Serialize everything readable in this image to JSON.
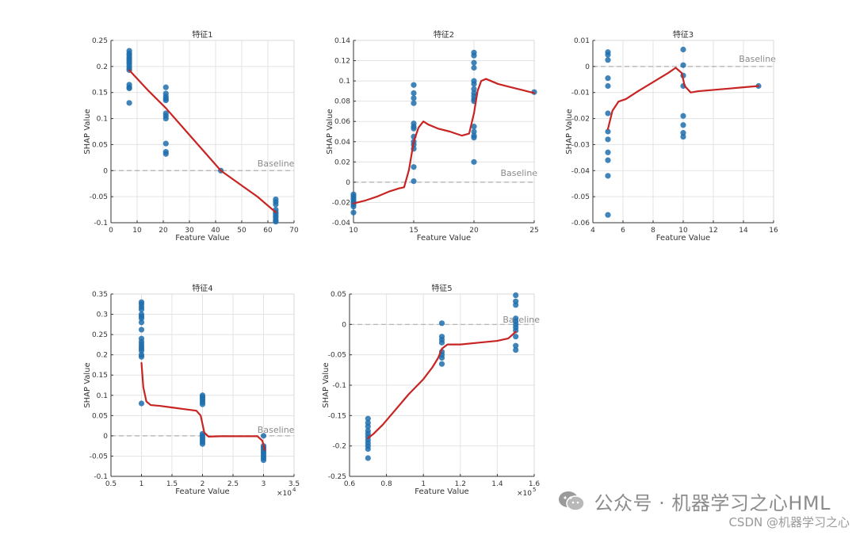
{
  "chart_data": [
    {
      "type": "scatter",
      "title": "特征1",
      "xlabel": "Feature Value",
      "ylabel": "SHAP Value",
      "xlim": [
        0,
        70
      ],
      "ylim": [
        -0.1,
        0.25
      ],
      "x_ticks": [
        0,
        10,
        20,
        30,
        40,
        50,
        60,
        70
      ],
      "y_ticks": [
        -0.1,
        -0.05,
        0,
        0.05,
        0.1,
        0.15,
        0.2,
        0.25
      ],
      "x_tick_labels": [
        "0",
        "10",
        "20",
        "30",
        "40",
        "50",
        "60",
        "70"
      ],
      "y_tick_labels": [
        "-0.1",
        "-0.05",
        "0",
        "0.05",
        "0.1",
        "0.15",
        "0.2",
        "0.25"
      ],
      "baseline_label": "Baseline",
      "baseline_label_pos": [
        56,
        0.008
      ],
      "grid": true,
      "points": [
        [
          7,
          0.23
        ],
        [
          7,
          0.225
        ],
        [
          7,
          0.222
        ],
        [
          7,
          0.218
        ],
        [
          7,
          0.215
        ],
        [
          7,
          0.212
        ],
        [
          7,
          0.208
        ],
        [
          7,
          0.205
        ],
        [
          7,
          0.2
        ],
        [
          7,
          0.196
        ],
        [
          7,
          0.193
        ],
        [
          7,
          0.165
        ],
        [
          7,
          0.16
        ],
        [
          7,
          0.158
        ],
        [
          7,
          0.13
        ],
        [
          21,
          0.16
        ],
        [
          21,
          0.148
        ],
        [
          21,
          0.142
        ],
        [
          21,
          0.138
        ],
        [
          21,
          0.135
        ],
        [
          21,
          0.11
        ],
        [
          21,
          0.105
        ],
        [
          21,
          0.1
        ],
        [
          21,
          0.052
        ],
        [
          21,
          0.036
        ],
        [
          21,
          0.032
        ],
        [
          42,
          0.0
        ],
        [
          63,
          -0.055
        ],
        [
          63,
          -0.06
        ],
        [
          63,
          -0.065
        ],
        [
          63,
          -0.075
        ],
        [
          63,
          -0.08
        ],
        [
          63,
          -0.083
        ],
        [
          63,
          -0.087
        ],
        [
          63,
          -0.09
        ],
        [
          63,
          -0.095
        ],
        [
          63,
          -0.098
        ]
      ],
      "fit_line": [
        [
          7,
          0.193
        ],
        [
          14,
          0.155
        ],
        [
          21,
          0.12
        ],
        [
          28,
          0.08
        ],
        [
          35,
          0.04
        ],
        [
          42,
          0.0
        ],
        [
          49,
          -0.025
        ],
        [
          56,
          -0.05
        ],
        [
          63,
          -0.08
        ]
      ]
    },
    {
      "type": "scatter",
      "title": "特征2",
      "xlabel": "Feature Value",
      "ylabel": "SHAP Value",
      "xlim": [
        10,
        25
      ],
      "ylim": [
        -0.04,
        0.14
      ],
      "x_ticks": [
        10,
        15,
        20,
        25
      ],
      "y_ticks": [
        -0.04,
        -0.02,
        0,
        0.02,
        0.04,
        0.06,
        0.08,
        0.1,
        0.12,
        0.14
      ],
      "x_tick_labels": [
        "10",
        "15",
        "20",
        "25"
      ],
      "y_tick_labels": [
        "-0.04",
        "-0.02",
        "0",
        "0.02",
        "0.04",
        "0.06",
        "0.08",
        "0.1",
        "0.12",
        "0.14"
      ],
      "baseline_label": "Baseline",
      "baseline_label_pos": [
        22.2,
        0.006
      ],
      "grid": true,
      "points": [
        [
          10,
          -0.012
        ],
        [
          10,
          -0.014
        ],
        [
          10,
          -0.016
        ],
        [
          10,
          -0.018
        ],
        [
          10,
          -0.02
        ],
        [
          10,
          -0.022
        ],
        [
          10,
          -0.024
        ],
        [
          10,
          -0.03
        ],
        [
          15,
          0.096
        ],
        [
          15,
          0.088
        ],
        [
          15,
          0.083
        ],
        [
          15,
          0.078
        ],
        [
          15,
          0.058
        ],
        [
          15,
          0.055
        ],
        [
          15,
          0.053
        ],
        [
          15,
          0.045
        ],
        [
          15,
          0.04
        ],
        [
          15,
          0.037
        ],
        [
          15,
          0.033
        ],
        [
          15,
          0.015
        ],
        [
          15,
          0.001
        ],
        [
          20,
          0.128
        ],
        [
          20,
          0.125
        ],
        [
          20,
          0.118
        ],
        [
          20,
          0.113
        ],
        [
          20,
          0.1
        ],
        [
          20,
          0.097
        ],
        [
          20,
          0.092
        ],
        [
          20,
          0.088
        ],
        [
          20,
          0.085
        ],
        [
          20,
          0.082
        ],
        [
          20,
          0.08
        ],
        [
          20,
          0.055
        ],
        [
          20,
          0.05
        ],
        [
          20,
          0.046
        ],
        [
          20,
          0.044
        ],
        [
          20,
          0.02
        ],
        [
          25,
          0.089
        ]
      ],
      "fit_line": [
        [
          10,
          -0.021
        ],
        [
          11,
          -0.018
        ],
        [
          12,
          -0.014
        ],
        [
          13,
          -0.009
        ],
        [
          13.8,
          -0.006
        ],
        [
          14.2,
          -0.005
        ],
        [
          14.6,
          0.012
        ],
        [
          15,
          0.04
        ],
        [
          15.4,
          0.054
        ],
        [
          15.8,
          0.06
        ],
        [
          16.2,
          0.057
        ],
        [
          17,
          0.053
        ],
        [
          18,
          0.05
        ],
        [
          19,
          0.046
        ],
        [
          19.6,
          0.048
        ],
        [
          20,
          0.068
        ],
        [
          20.3,
          0.09
        ],
        [
          20.6,
          0.1
        ],
        [
          21,
          0.102
        ],
        [
          22,
          0.097
        ],
        [
          23,
          0.094
        ],
        [
          24,
          0.091
        ],
        [
          25,
          0.088
        ]
      ]
    },
    {
      "type": "scatter",
      "title": "特征3",
      "xlabel": "Feature Value",
      "ylabel": "SHAP Value",
      "xlim": [
        4,
        16
      ],
      "ylim": [
        -0.06,
        0.01
      ],
      "x_ticks": [
        4,
        6,
        8,
        10,
        12,
        14,
        16
      ],
      "y_ticks": [
        -0.06,
        -0.05,
        -0.04,
        -0.03,
        -0.02,
        -0.01,
        0,
        0.01
      ],
      "x_tick_labels": [
        "4",
        "6",
        "8",
        "10",
        "12",
        "14",
        "16"
      ],
      "y_tick_labels": [
        "-0.06",
        "-0.05",
        "-0.04",
        "-0.03",
        "-0.02",
        "-0.01",
        "0",
        "0.01"
      ],
      "baseline_label": "Baseline",
      "baseline_label_pos": [
        13.7,
        0.0018
      ],
      "grid": true,
      "points": [
        [
          5,
          0.0055
        ],
        [
          5,
          0.0045
        ],
        [
          5,
          0.0025
        ],
        [
          5,
          -0.0045
        ],
        [
          5,
          -0.0075
        ],
        [
          5,
          -0.018
        ],
        [
          5,
          -0.025
        ],
        [
          5,
          -0.028
        ],
        [
          5,
          -0.033
        ],
        [
          5,
          -0.036
        ],
        [
          5,
          -0.042
        ],
        [
          5,
          -0.057
        ],
        [
          10,
          0.0065
        ],
        [
          10,
          0.0005
        ],
        [
          10,
          -0.0035
        ],
        [
          10,
          -0.0075
        ],
        [
          10,
          -0.019
        ],
        [
          10,
          -0.0225
        ],
        [
          10,
          -0.0255
        ],
        [
          10,
          -0.027
        ],
        [
          15,
          -0.0075
        ]
      ],
      "fit_line": [
        [
          5,
          -0.024
        ],
        [
          5.3,
          -0.017
        ],
        [
          5.7,
          -0.0135
        ],
        [
          6.2,
          -0.0125
        ],
        [
          7,
          -0.0095
        ],
        [
          8,
          -0.006
        ],
        [
          9,
          -0.0025
        ],
        [
          9.5,
          -0.0005
        ],
        [
          9.9,
          -0.0025
        ],
        [
          10.1,
          -0.0075
        ],
        [
          10.5,
          -0.01
        ],
        [
          11,
          -0.0095
        ],
        [
          12,
          -0.009
        ],
        [
          13,
          -0.0085
        ],
        [
          14,
          -0.008
        ],
        [
          15,
          -0.0075
        ]
      ]
    },
    {
      "type": "scatter",
      "title": "特征4",
      "xlabel": "Feature Value",
      "ylabel": "SHAP Value",
      "x_multiplier": "×10",
      "x_multiplier_exp": "4",
      "xlim": [
        0.5,
        3.5
      ],
      "ylim": [
        -0.1,
        0.35
      ],
      "x_ticks": [
        0.5,
        1,
        1.5,
        2,
        2.5,
        3,
        3.5
      ],
      "y_ticks": [
        -0.1,
        -0.05,
        0,
        0.05,
        0.1,
        0.15,
        0.2,
        0.25,
        0.3,
        0.35
      ],
      "x_tick_labels": [
        "0.5",
        "1",
        "1.5",
        "2",
        "2.5",
        "3",
        "3.5"
      ],
      "y_tick_labels": [
        "-0.1",
        "-0.05",
        "0",
        "0.05",
        "0.1",
        "0.15",
        "0.2",
        "0.25",
        "0.3",
        "0.35"
      ],
      "baseline_label": "Baseline",
      "baseline_label_pos": [
        2.9,
        0.008
      ],
      "grid": true,
      "points": [
        [
          1,
          0.33
        ],
        [
          1,
          0.325
        ],
        [
          1,
          0.318
        ],
        [
          1,
          0.312
        ],
        [
          1,
          0.3
        ],
        [
          1,
          0.295
        ],
        [
          1,
          0.29
        ],
        [
          1,
          0.28
        ],
        [
          1,
          0.262
        ],
        [
          1,
          0.24
        ],
        [
          1,
          0.232
        ],
        [
          1,
          0.226
        ],
        [
          1,
          0.22
        ],
        [
          1,
          0.215
        ],
        [
          1,
          0.21
        ],
        [
          1,
          0.2
        ],
        [
          1,
          0.195
        ],
        [
          1,
          0.08
        ],
        [
          2,
          0.1
        ],
        [
          2,
          0.096
        ],
        [
          2,
          0.092
        ],
        [
          2,
          0.088
        ],
        [
          2,
          0.083
        ],
        [
          2,
          0.078
        ],
        [
          2,
          0.005
        ],
        [
          2,
          0.0
        ],
        [
          2,
          -0.005
        ],
        [
          2,
          -0.01
        ],
        [
          2,
          -0.015
        ],
        [
          2,
          -0.02
        ],
        [
          3,
          0.0
        ],
        [
          3,
          -0.025
        ],
        [
          3,
          -0.03
        ],
        [
          3,
          -0.035
        ],
        [
          3,
          -0.04
        ],
        [
          3,
          -0.045
        ],
        [
          3,
          -0.05
        ],
        [
          3,
          -0.055
        ],
        [
          3,
          -0.06
        ]
      ],
      "fit_line": [
        [
          1,
          0.18
        ],
        [
          1.03,
          0.12
        ],
        [
          1.08,
          0.085
        ],
        [
          1.15,
          0.076
        ],
        [
          1.3,
          0.074
        ],
        [
          1.5,
          0.07
        ],
        [
          1.7,
          0.066
        ],
        [
          1.9,
          0.062
        ],
        [
          1.97,
          0.05
        ],
        [
          2.03,
          0.008
        ],
        [
          2.1,
          -0.002
        ],
        [
          2.3,
          -0.001
        ],
        [
          2.5,
          -0.001
        ],
        [
          2.7,
          -0.001
        ],
        [
          2.9,
          -0.001
        ],
        [
          2.98,
          -0.012
        ],
        [
          3.02,
          -0.035
        ]
      ]
    },
    {
      "type": "scatter",
      "title": "特征5",
      "xlabel": "Feature Value",
      "ylabel": "SHAP Value",
      "x_multiplier": "×10",
      "x_multiplier_exp": "5",
      "xlim": [
        0.6,
        1.6
      ],
      "ylim": [
        -0.25,
        0.05
      ],
      "x_ticks": [
        0.6,
        0.8,
        1.0,
        1.2,
        1.4,
        1.6
      ],
      "y_ticks": [
        -0.25,
        -0.2,
        -0.15,
        -0.1,
        -0.05,
        0,
        0.05
      ],
      "x_tick_labels": [
        "0.6",
        "0.8",
        "1",
        "1.2",
        "1.4",
        "1.6"
      ],
      "y_tick_labels": [
        "-0.25",
        "-0.2",
        "-0.15",
        "-0.1",
        "-0.05",
        "0",
        "0.05"
      ],
      "baseline_label": "Baseline",
      "baseline_label_pos": [
        1.43,
        0.003
      ],
      "grid": true,
      "points": [
        [
          0.7,
          -0.155
        ],
        [
          0.7,
          -0.162
        ],
        [
          0.7,
          -0.168
        ],
        [
          0.7,
          -0.175
        ],
        [
          0.7,
          -0.18
        ],
        [
          0.7,
          -0.185
        ],
        [
          0.7,
          -0.19
        ],
        [
          0.7,
          -0.195
        ],
        [
          0.7,
          -0.2
        ],
        [
          0.7,
          -0.205
        ],
        [
          0.7,
          -0.22
        ],
        [
          1.1,
          0.002
        ],
        [
          1.1,
          -0.02
        ],
        [
          1.1,
          -0.025
        ],
        [
          1.1,
          -0.03
        ],
        [
          1.1,
          -0.045
        ],
        [
          1.1,
          -0.05
        ],
        [
          1.1,
          -0.055
        ],
        [
          1.1,
          -0.065
        ],
        [
          1.5,
          0.048
        ],
        [
          1.5,
          0.038
        ],
        [
          1.5,
          0.032
        ],
        [
          1.5,
          0.01
        ],
        [
          1.5,
          0.005
        ],
        [
          1.5,
          0.0
        ],
        [
          1.5,
          -0.005
        ],
        [
          1.5,
          -0.01
        ],
        [
          1.5,
          -0.02
        ],
        [
          1.5,
          -0.035
        ],
        [
          1.5,
          -0.042
        ]
      ],
      "fit_line": [
        [
          0.7,
          -0.187
        ],
        [
          0.73,
          -0.18
        ],
        [
          0.78,
          -0.165
        ],
        [
          0.85,
          -0.14
        ],
        [
          0.92,
          -0.115
        ],
        [
          1.0,
          -0.09
        ],
        [
          1.05,
          -0.07
        ],
        [
          1.08,
          -0.055
        ],
        [
          1.1,
          -0.04
        ],
        [
          1.13,
          -0.033
        ],
        [
          1.2,
          -0.033
        ],
        [
          1.3,
          -0.03
        ],
        [
          1.4,
          -0.027
        ],
        [
          1.46,
          -0.023
        ],
        [
          1.5,
          -0.012
        ]
      ]
    }
  ],
  "watermark": {
    "text": "公众号 · 机器学习之心HML",
    "icon": "wechat-icon"
  },
  "footer": {
    "text": "CSDN @机器学习之心"
  },
  "colors": {
    "point": "#1f6fae",
    "line": "#c82423",
    "grid": "#e3e3e3",
    "baseline": "#b0b0b0",
    "axis": "#333333",
    "text": "#333333",
    "baseline_text": "#8a8a8a"
  }
}
